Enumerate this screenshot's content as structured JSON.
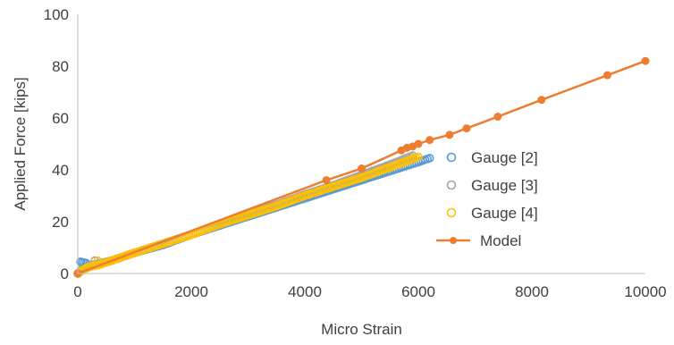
{
  "chart_data": {
    "type": "scatter",
    "title": "",
    "xlabel": "Micro Strain",
    "ylabel": "Applied Force [kips]",
    "xlim": [
      0,
      10000
    ],
    "ylim": [
      0,
      100
    ],
    "xticks": [
      "0",
      "2000",
      "4000",
      "6000",
      "8000",
      "10000"
    ],
    "yticks": [
      "0",
      "20",
      "40",
      "60",
      "80",
      "100"
    ],
    "grid": false,
    "legend_position": "right",
    "series": [
      {
        "name": "Gauge [2]",
        "kind": "markers",
        "marker": "open-circle",
        "color": "#5B9BD5",
        "x": [
          0,
          100,
          200,
          400,
          600,
          800,
          1000,
          1500,
          2000,
          2500,
          3000,
          3500,
          4000,
          4500,
          5000,
          5500,
          6000,
          6200,
          50,
          150
        ],
        "y": [
          0,
          2,
          3,
          4,
          5,
          6.5,
          8,
          11,
          15,
          18.5,
          22,
          25.5,
          29,
          32.5,
          36,
          39.5,
          43,
          44.5,
          4.5,
          4
        ]
      },
      {
        "name": "Gauge [3]",
        "kind": "markers",
        "marker": "open-circle",
        "color": "#A5A5A5",
        "x": [
          0,
          100,
          200,
          400,
          600,
          800,
          1000,
          1500,
          2000,
          2500,
          3000,
          3500,
          4000,
          4500,
          5000,
          5500,
          5900,
          300
        ],
        "y": [
          0,
          1.5,
          3,
          4,
          5,
          6.5,
          8,
          11.5,
          15,
          19,
          23,
          26.5,
          30.5,
          34,
          38,
          42,
          45.5,
          5
        ]
      },
      {
        "name": "Gauge [4]",
        "kind": "markers",
        "marker": "open-circle",
        "color": "#FFC000",
        "x": [
          0,
          100,
          200,
          400,
          600,
          800,
          1000,
          1500,
          2000,
          2500,
          3000,
          3500,
          4000,
          4500,
          5000,
          5500,
          6000,
          350
        ],
        "y": [
          0,
          1.5,
          2.5,
          3.5,
          5,
          6.5,
          8,
          11.5,
          15,
          19,
          22.5,
          26,
          30,
          33.5,
          37,
          41,
          45,
          5
        ]
      },
      {
        "name": "Model",
        "kind": "line-markers",
        "marker": "filled-circle",
        "color": "#ED7D31",
        "x": [
          0,
          4380,
          5000,
          5700,
          5800,
          5900,
          6000,
          6200,
          6550,
          6850,
          7400,
          8170,
          9330,
          10000
        ],
        "y": [
          0,
          36,
          40.5,
          47.5,
          48.5,
          49,
          50,
          51.5,
          53.5,
          56,
          60.5,
          67,
          76.5,
          82
        ]
      }
    ]
  }
}
